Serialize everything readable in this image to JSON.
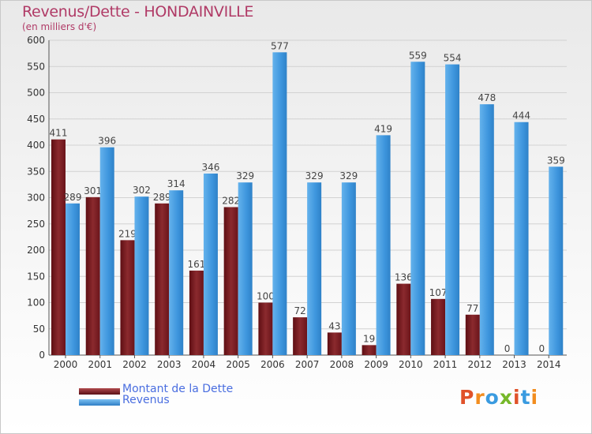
{
  "title": "Revenus/Dette - HONDAINVILLE",
  "subtitle": "(en milliers d'€)",
  "legend": {
    "debt_label": "Montant de la Dette",
    "revenue_label": "Revenus"
  },
  "logo": {
    "text": "Proxiti"
  },
  "colors": {
    "debt": "#7a1a1f",
    "revenue": "#3d95dd",
    "title": "#b03a66",
    "legend_text": "#4a6ee0"
  },
  "chart_data": {
    "type": "bar",
    "title": "Revenus/Dette - HONDAINVILLE",
    "subtitle": "(en milliers d'€)",
    "categories": [
      "2000",
      "2001",
      "2002",
      "2003",
      "2004",
      "2005",
      "2006",
      "2007",
      "2008",
      "2009",
      "2010",
      "2011",
      "2012",
      "2013",
      "2014"
    ],
    "series": [
      {
        "name": "Montant de la Dette",
        "values": [
          411,
          301,
          219,
          289,
          161,
          282,
          100,
          72,
          43,
          19,
          136,
          107,
          77,
          0,
          0
        ]
      },
      {
        "name": "Revenus",
        "values": [
          289,
          396,
          302,
          314,
          346,
          329,
          577,
          329,
          329,
          419,
          559,
          554,
          478,
          444,
          359
        ]
      }
    ],
    "ylim": [
      0,
      600
    ],
    "yticks": [
      0,
      50,
      100,
      150,
      200,
      250,
      300,
      350,
      400,
      450,
      500,
      550,
      600
    ],
    "grid": true,
    "legend_position": "bottom-left"
  }
}
